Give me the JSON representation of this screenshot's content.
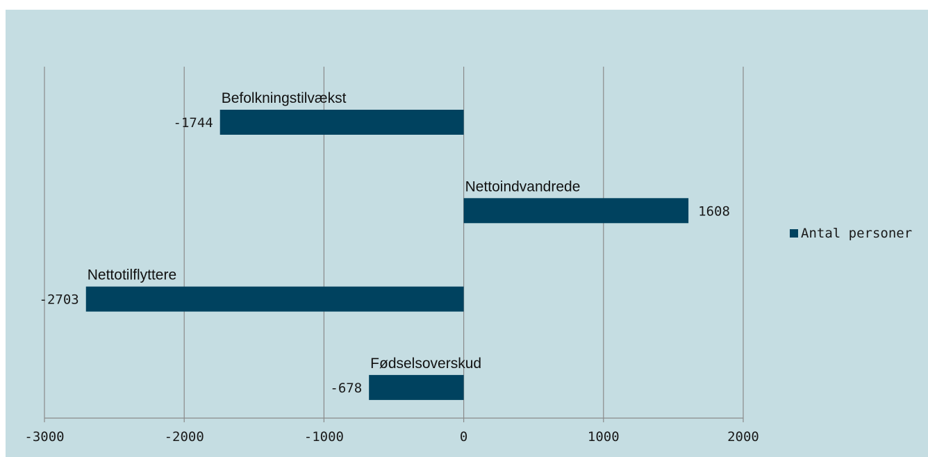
{
  "chart_data": {
    "type": "bar",
    "orientation": "horizontal",
    "categories": [
      "Befolkningstilvækst",
      "Nettoindvandrede",
      "Nettotilflyttere",
      "Fødselsoverskud"
    ],
    "series": [
      {
        "name": "Antal personer",
        "values": [
          -1744,
          1608,
          -2703,
          -678
        ]
      }
    ],
    "value_labels": [
      "-1744",
      "1608",
      "-2703",
      "-678"
    ],
    "xlim": [
      -3000,
      2000
    ],
    "x_ticks": [
      -3000,
      -2000,
      -1000,
      0,
      1000,
      2000
    ],
    "x_tick_labels": [
      "-3000",
      "-2000",
      "-1000",
      "0",
      "1000",
      "2000"
    ],
    "grid": "vertical",
    "legend_position": "right",
    "title": "",
    "xlabel": "",
    "ylabel": ""
  },
  "colors": {
    "bar": "#00425f",
    "background": "#c5dde2",
    "grid": "#8a8a8a"
  }
}
